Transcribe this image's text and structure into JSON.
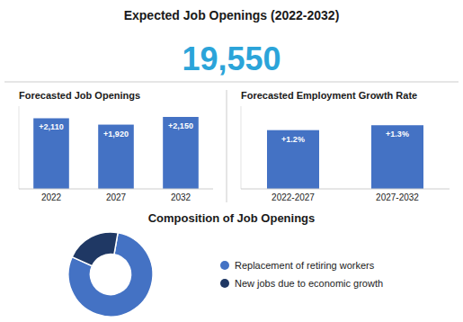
{
  "chart_data": [
    {
      "type": "kpi",
      "title": "Expected Job Openings (2022-2032)",
      "values": [
        19550
      ],
      "value_labels": [
        "19,550"
      ],
      "color": "#2BA4D9"
    },
    {
      "type": "bar",
      "title": "Forecasted Job Openings",
      "categories": [
        "2022",
        "2027",
        "2032"
      ],
      "values": [
        2110,
        1920,
        2150
      ],
      "value_labels": [
        "+2,110",
        "+1,920",
        "+2,150"
      ],
      "data_labels": true,
      "color": "#4472C4",
      "ylim": [
        0,
        2472.5
      ],
      "tick_labels": "x",
      "grid": false
    },
    {
      "type": "bar",
      "title": "Forecasted Employment Growth Rate",
      "categories": [
        "2022-2027",
        "2027-2032"
      ],
      "values": [
        1.2,
        1.3
      ],
      "value_labels": [
        "+1.2%",
        "+1.3%"
      ],
      "data_labels": true,
      "color": "#4472C4",
      "ylim": [
        0,
        1.69
      ],
      "tick_labels": "x",
      "grid": false
    },
    {
      "type": "pie",
      "title": "Composition of Job Openings",
      "categories": [
        "Replacement of retiring workers",
        "New jobs due to economic growth"
      ],
      "values": [
        79,
        21
      ],
      "colors": [
        "#4472C4",
        "#1F3864"
      ],
      "legend": "right"
    }
  ]
}
